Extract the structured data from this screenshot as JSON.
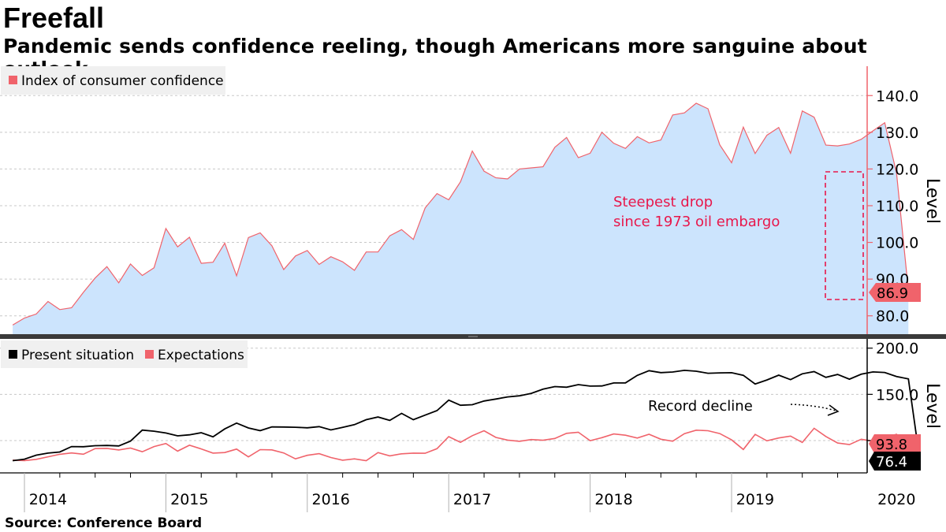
{
  "title": "Freefall",
  "subtitle": "Pandemic sends confidence reeling, though Americans more sanguine about outlook",
  "source": "Source: Conference Board",
  "colors": {
    "confidence_line": "#f0636b",
    "confidence_fill": "#cce4fd",
    "expectations": "#f0636b",
    "present": "#000000",
    "annotation": "#e8174b",
    "grid": "#c8c8c8"
  },
  "chart_data": [
    {
      "type": "area",
      "legend": [
        "Index of consumer confidence"
      ],
      "legend_position": "top-left",
      "ylabel": "Level",
      "ylim": [
        75,
        148
      ],
      "y_ticks": [
        80,
        90,
        100,
        110,
        120,
        130,
        140
      ],
      "y_tick_labels": [
        "80.0",
        "90.0",
        "100.0",
        "110.0",
        "120.0",
        "130.0",
        "140.0"
      ],
      "grid": true,
      "series": [
        {
          "name": "Index of consumer confidence",
          "x_start": "2013-12",
          "frequency": "monthly",
          "values": [
            77.5,
            79.4,
            80.5,
            83.9,
            81.7,
            82.2,
            86.4,
            90.3,
            93.4,
            89.0,
            94.1,
            91.0,
            93.1,
            103.8,
            98.8,
            101.4,
            94.3,
            94.6,
            99.8,
            90.9,
            101.3,
            102.6,
            99.1,
            92.6,
            96.3,
            97.8,
            94.0,
            96.1,
            94.7,
            92.4,
            97.4,
            97.4,
            101.8,
            103.5,
            100.8,
            109.4,
            113.3,
            111.6,
            116.5,
            124.9,
            119.4,
            117.6,
            117.3,
            120.0,
            120.3,
            120.6,
            125.9,
            128.6,
            123.1,
            124.3,
            130.0,
            127.0,
            125.6,
            128.8,
            127.1,
            127.9,
            134.7,
            135.3,
            137.9,
            136.4,
            126.6,
            121.7,
            131.4,
            124.2,
            129.2,
            131.3,
            124.3,
            135.8,
            134.1,
            126.5,
            126.3,
            126.8,
            128.1,
            130.4,
            132.6,
            118.8,
            86.9
          ]
        }
      ],
      "last_value_label": "86.9",
      "annotation": [
        "Steepest drop",
        "since 1973 oil embargo"
      ]
    },
    {
      "type": "line",
      "legend": [
        "Present situation",
        "Expectations"
      ],
      "legend_position": "top-left",
      "ylabel": "Level",
      "ylim": [
        65,
        210
      ],
      "y_ticks": [
        100,
        150,
        200
      ],
      "y_tick_labels": [
        "100.0",
        "150.0",
        "200.0"
      ],
      "grid": true,
      "series": [
        {
          "name": "Present situation",
          "x_start": "2013-12",
          "frequency": "monthly",
          "values": [
            78.2,
            79.8,
            84.2,
            86.4,
            87.6,
            93.5,
            93.3,
            94.4,
            94.7,
            94.2,
            99.4,
            111.3,
            110.1,
            108.2,
            105.1,
            106.2,
            108.5,
            104.1,
            112.6,
            118.9,
            113.6,
            110.7,
            114.7,
            114.6,
            114.4,
            113.8,
            115.1,
            111.5,
            114.3,
            117.2,
            122.6,
            125.5,
            121.8,
            129.4,
            122.6,
            127.5,
            132.4,
            143.7,
            138.2,
            138.8,
            142.8,
            144.9,
            147.2,
            148.4,
            151.1,
            155.6,
            158.4,
            157.7,
            160.5,
            158.9,
            159.1,
            162.3,
            162.4,
            170.5,
            175.6,
            173.5,
            174.2,
            176.0,
            175.0,
            172.8,
            173.2,
            173.4,
            170.6,
            161.2,
            165.6,
            170.8,
            165.9,
            172.2,
            174.6,
            168.4,
            171.5,
            166.4,
            171.8,
            174.3,
            173.7,
            169.3,
            166.7,
            76.4
          ]
        },
        {
          "name": "Expectations",
          "x_start": "2013-12",
          "frequency": "monthly",
          "values": [
            78.8,
            78.3,
            79.7,
            82.4,
            85.1,
            86.6,
            85.2,
            91.3,
            91.5,
            89.8,
            91.9,
            87.9,
            93.5,
            96.8,
            88.5,
            94.9,
            90.9,
            86.4,
            87.0,
            90.8,
            82.3,
            90.2,
            89.9,
            86.6,
            80.2,
            84.0,
            85.8,
            81.6,
            78.7,
            80.2,
            78.2,
            87.0,
            83.4,
            85.6,
            86.4,
            86.2,
            91.2,
            104.2,
            98.1,
            105.3,
            110.6,
            103.4,
            100.5,
            99.2,
            101.1,
            100.3,
            102.3,
            107.8,
            109.0,
            99.9,
            103.1,
            107.1,
            105.8,
            102.7,
            106.8,
            101.4,
            99.3,
            107.5,
            111.2,
            110.6,
            107.6,
            100.7,
            90.3,
            106.7,
            99.7,
            102.8,
            104.8,
            97.9,
            113.3,
            104.4,
            97.3,
            95.6,
            101.4,
            99.3,
            103.5,
            106.8,
            90.2,
            93.8
          ]
        }
      ],
      "last_value_labels": {
        "expectations": "93.8",
        "present": "76.4"
      },
      "annotation": "Record decline"
    }
  ],
  "x_axis": {
    "type": "date",
    "range": [
      "2013-11",
      "2020-06"
    ],
    "year_labels": [
      "2014",
      "2015",
      "2016",
      "2017",
      "2018",
      "2019",
      "2020"
    ]
  }
}
